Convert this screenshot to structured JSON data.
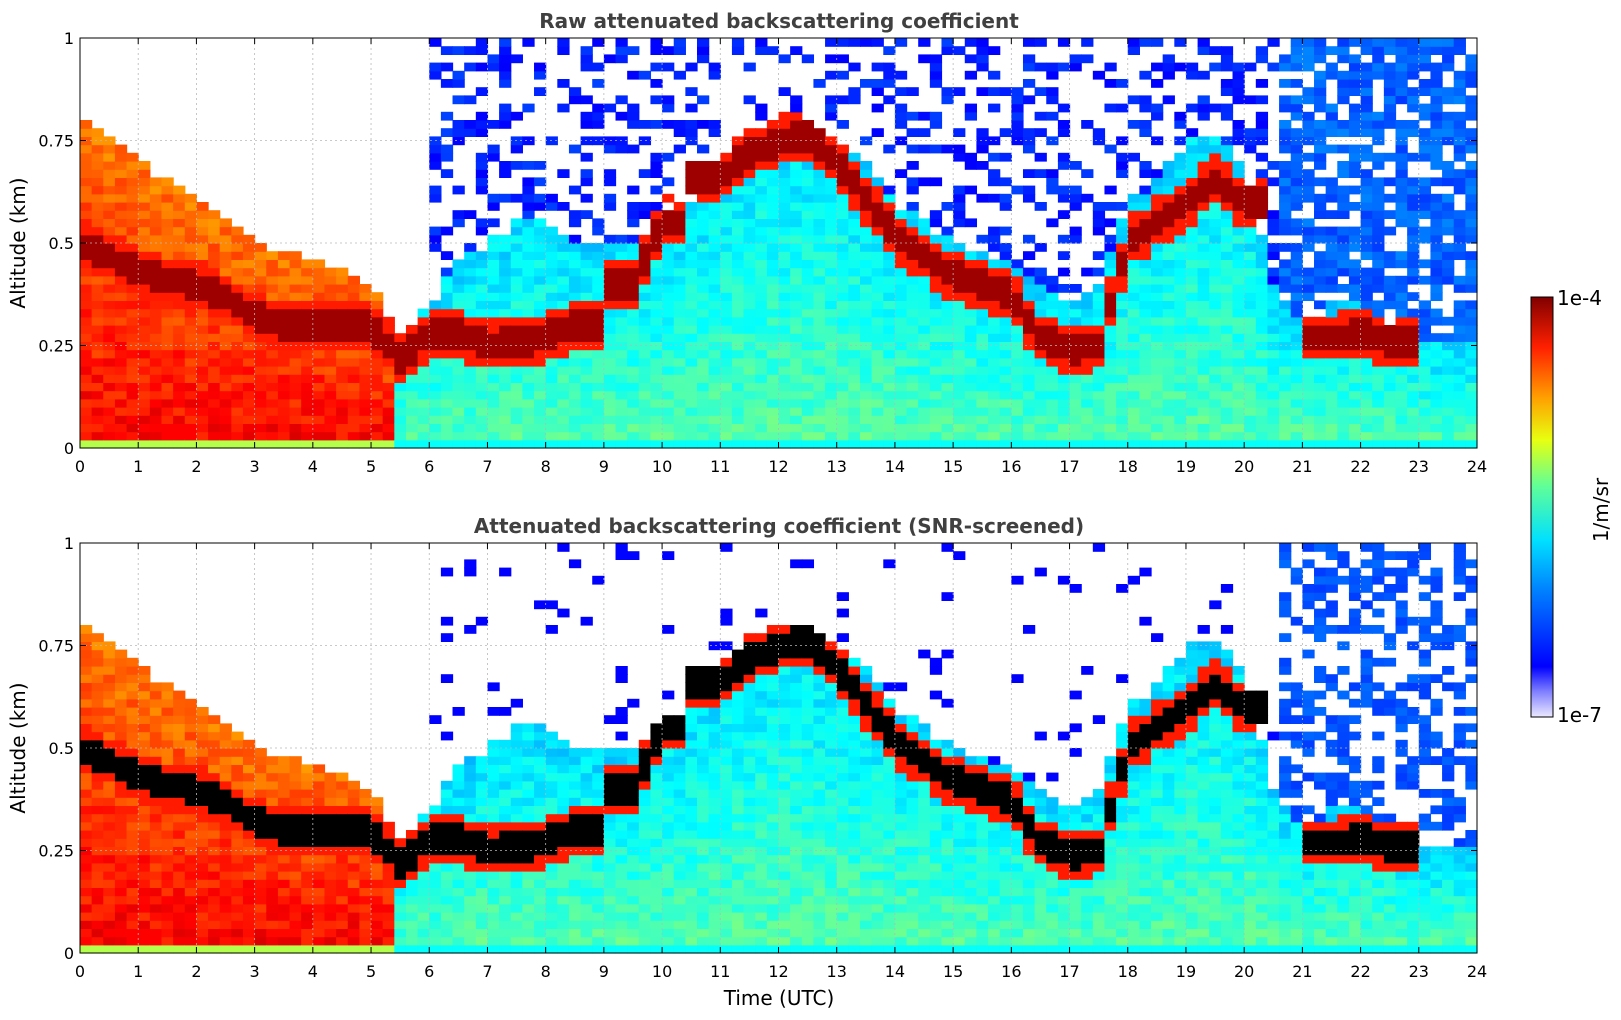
{
  "chart_data": [
    {
      "type": "heatmap",
      "title": "Raw attenuated backscattering coefficient",
      "xlabel": "",
      "ylabel": "Altitude (km)",
      "xlim": [
        0,
        24
      ],
      "ylim": [
        0,
        1
      ],
      "x_ticks": [
        "0",
        "1",
        "2",
        "3",
        "4",
        "5",
        "6",
        "7",
        "8",
        "9",
        "10",
        "11",
        "12",
        "13",
        "14",
        "15",
        "16",
        "17",
        "18",
        "19",
        "20",
        "21",
        "22",
        "23",
        "24"
      ],
      "y_ticks": [
        "0",
        "0.25",
        "0.5",
        "0.75",
        "1"
      ],
      "grid": true,
      "colorscale": "jet",
      "color_range": [
        "1e-7",
        "1e-4"
      ],
      "profile": {
        "time_utc": [
          0,
          0.5,
          1,
          1.5,
          2,
          2.5,
          3,
          3.5,
          4,
          4.5,
          5,
          5.5,
          6,
          6.5,
          7,
          7.5,
          8,
          8.5,
          9,
          9.5,
          10,
          10.5,
          11,
          11.5,
          12,
          12.5,
          13,
          13.5,
          14,
          14.5,
          15,
          15.5,
          16,
          16.5,
          17,
          17.5,
          18,
          18.5,
          19,
          19.5,
          20,
          20.5,
          21,
          21.5,
          22,
          22.5,
          23,
          23.5,
          24
        ],
        "cloud_layer_km": [
          0.5,
          0.47,
          0.43,
          0.41,
          0.4,
          0.37,
          0.32,
          0.3,
          0.3,
          0.3,
          0.3,
          0.22,
          0.28,
          0.28,
          0.25,
          0.26,
          0.27,
          0.3,
          null,
          0.4,
          0.55,
          null,
          0.66,
          0.72,
          0.75,
          0.76,
          0.7,
          0.61,
          0.52,
          0.47,
          0.42,
          0.4,
          0.37,
          0.27,
          0.24,
          0.25,
          0.5,
          0.55,
          0.6,
          0.65,
          0.6,
          null,
          null,
          0.27,
          0.28,
          0.26,
          null,
          null,
          null
        ],
        "aerosol_top_km": [
          0.8,
          0.75,
          0.7,
          0.65,
          0.6,
          0.55,
          0.5,
          0.48,
          0.46,
          0.44,
          0.4,
          0.28,
          0.35,
          0.45,
          0.5,
          0.55,
          0.55,
          0.5,
          0.5,
          0.5,
          0.55,
          0.6,
          0.7,
          0.78,
          0.8,
          0.8,
          0.75,
          0.7,
          0.6,
          0.55,
          0.5,
          0.47,
          0.45,
          0.4,
          0.35,
          0.4,
          0.6,
          0.65,
          0.75,
          0.75,
          0.7,
          0.4,
          0.3,
          0.35,
          0.35,
          0.3,
          0.25,
          0.25,
          0.25
        ]
      }
    },
    {
      "type": "heatmap",
      "title": "Attenuated backscattering coefficient (SNR-screened)",
      "xlabel": "Time (UTC)",
      "ylabel": "Altitude (km)",
      "xlim": [
        0,
        24
      ],
      "ylim": [
        0,
        1
      ],
      "x_ticks": [
        "0",
        "1",
        "2",
        "3",
        "4",
        "5",
        "6",
        "7",
        "8",
        "9",
        "10",
        "11",
        "12",
        "13",
        "14",
        "15",
        "16",
        "17",
        "18",
        "19",
        "20",
        "21",
        "22",
        "23",
        "24"
      ],
      "y_ticks": [
        "0",
        "0.25",
        "0.5",
        "0.75",
        "1"
      ],
      "grid": true,
      "colorscale": "jet",
      "color_range": [
        "1e-7",
        "1e-4"
      ],
      "screened": true
    }
  ],
  "colorbar": {
    "top_label": "1e-4",
    "bottom_label": "1e-7",
    "unit_label": "1/m/sr"
  }
}
